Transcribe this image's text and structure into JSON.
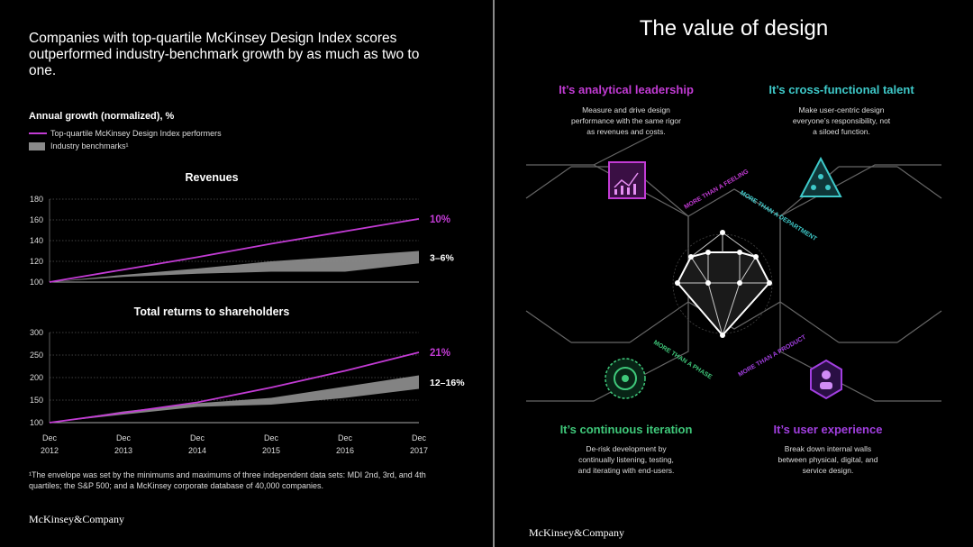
{
  "left": {
    "headline": "Companies with top-quartile McKinsey Design Index scores outperformed industry-benchmark growth by as much as two to one.",
    "legend_title": "Annual growth (normalized), %",
    "legend_line": "Top-quartile McKinsey Design Index performers",
    "legend_band": "Industry benchmarks¹",
    "footnote": "¹The envelope was set by the minimums and maximums of three independent data sets: MDI 2nd, 3rd, and 4th quartiles; the S&P 500; and a McKinsey corporate database of 40,000 companies.",
    "brand": "McKinsey&Company"
  },
  "colors": {
    "line": "#c23bd4",
    "band": "#8a8a8a",
    "teal": "#3ec9c9",
    "green": "#3fc87a"
  },
  "chart_data": [
    {
      "type": "line",
      "title": "Revenues",
      "x": [
        "Dec 2012",
        "Dec 2013",
        "Dec 2014",
        "Dec 2015",
        "Dec 2016",
        "Dec 2017"
      ],
      "yticks": [
        100,
        120,
        140,
        160,
        180
      ],
      "ylim": [
        100,
        180
      ],
      "grid": true,
      "series": [
        {
          "name": "Top-quartile McKinsey Design Index performers",
          "values": [
            100,
            112,
            124,
            137,
            149,
            161
          ]
        },
        {
          "name": "Industry benchmarks¹",
          "kind": "band",
          "upper": [
            100,
            107,
            113,
            120,
            125,
            130
          ],
          "lower": [
            100,
            105,
            108,
            110,
            110,
            118
          ]
        }
      ],
      "labels": {
        "line": "10%",
        "band": "3–6%"
      }
    },
    {
      "type": "line",
      "title": "Total returns to shareholders",
      "x": [
        "Dec 2012",
        "Dec 2013",
        "Dec 2014",
        "Dec 2015",
        "Dec 2016",
        "Dec 2017"
      ],
      "yticks": [
        100,
        150,
        200,
        250,
        300
      ],
      "ylim": [
        100,
        300
      ],
      "grid": true,
      "series": [
        {
          "name": "Top-quartile McKinsey Design Index performers",
          "values": [
            100,
            122,
            145,
            178,
            215,
            256
          ]
        },
        {
          "name": "Industry benchmarks¹",
          "kind": "band",
          "upper": [
            100,
            125,
            143,
            155,
            180,
            205
          ],
          "lower": [
            100,
            118,
            135,
            140,
            155,
            175
          ]
        }
      ],
      "labels": {
        "line": "21%",
        "band": "12–16%"
      }
    }
  ],
  "right": {
    "title": "The value of design",
    "brand": "McKinsey&Company",
    "quadrants": [
      {
        "heading": "It’s analytical leadership",
        "text": [
          "Measure and drive design",
          "performance with the same rigor",
          "as revenues and costs."
        ],
        "color": "#c23bd4"
      },
      {
        "heading": "It’s cross-functional talent",
        "text": [
          "Make user-centric design",
          "everyone’s responsibility, not",
          "a siloed function."
        ],
        "color": "#3ec9c9"
      },
      {
        "heading": "It’s continuous iteration",
        "text": [
          "De-risk development by",
          "continually listening, testing,",
          "and iterating with end-users."
        ],
        "color": "#3fc87a"
      },
      {
        "heading": "It’s user experience",
        "text": [
          "Break down internal walls",
          "between physical, digital, and",
          "service design."
        ],
        "color": "#a23fe0"
      }
    ],
    "spokes": [
      "MORE THAN A FEELING",
      "MORE THAN A DEPARTMENT",
      "MORE THAN A PHASE",
      "MORE THAN A PRODUCT"
    ]
  }
}
